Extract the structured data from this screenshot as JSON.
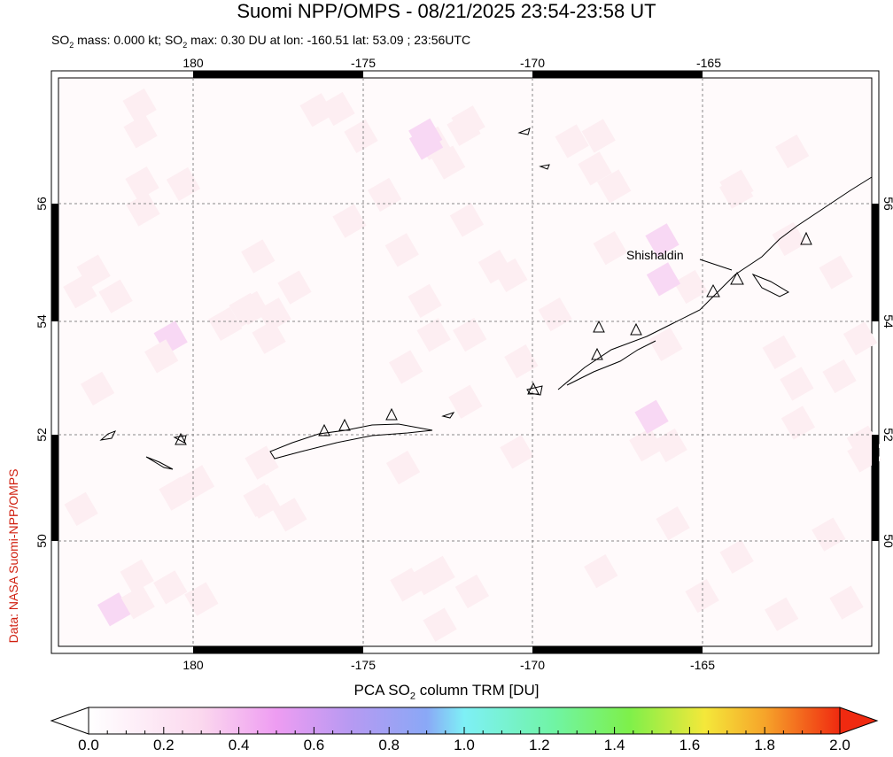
{
  "title": "Suomi NPP/OMPS - 08/21/2025 23:54-23:58 UT",
  "subtitle": {
    "so2_label": "SO",
    "sub": "2",
    "mass": " mass: 0.000 kt; ",
    "so2_label2": "SO",
    "sub2": "2",
    "rest": " max: 0.30 DU at lon: -160.51 lat: 53.09 ; 23:56UTC"
  },
  "credit": "Data: NASA Suomi-NPP/OMPS",
  "map": {
    "lon_ticks": [
      "180",
      "-175",
      "-170",
      "-165"
    ],
    "lat_ticks": [
      "56",
      "54",
      "52",
      "50"
    ],
    "volcano_label": "Shishaldin"
  },
  "colorbar": {
    "title_pre": "PCA SO",
    "title_sub": "2",
    "title_post": " column TRM [DU]",
    "ticks": [
      "0.0",
      "0.2",
      "0.4",
      "0.6",
      "0.8",
      "1.0",
      "1.2",
      "1.4",
      "1.6",
      "1.8",
      "2.0"
    ],
    "range": [
      0,
      2
    ]
  }
}
